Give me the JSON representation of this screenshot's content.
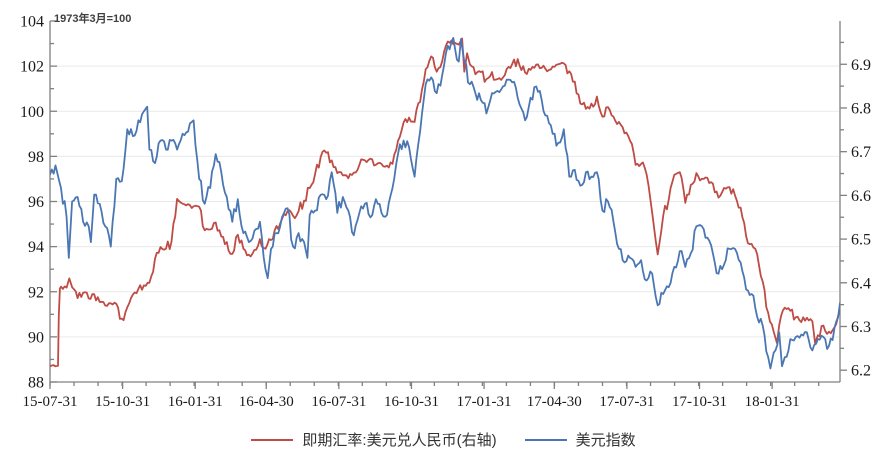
{
  "chart": {
    "annotation": "1973年3月=100",
    "legend": [
      {
        "label": "即期汇率:美元兑人民币(右轴)",
        "color": "#bf4b45"
      },
      {
        "label": "美元指数",
        "color": "#4a77b4"
      }
    ],
    "colors": {
      "axis_line": "#808080",
      "gridline": "#e9e9e9",
      "tick": "#808080",
      "label": "#1a1a1a",
      "red_series": "#bf4b45",
      "blue_series": "#4a77b4",
      "background": "#ffffff"
    }
  },
  "chart_data": {
    "type": "line",
    "title": "",
    "annotation": "1973年3月=100",
    "x_unit": "weeks since 2015-07-31",
    "grid": "horizontal-only",
    "legend_position": "bottom-center",
    "x_ticks": {
      "labels": [
        "15-07-31",
        "15-10-31",
        "16-01-31",
        "16-04-30",
        "16-07-31",
        "16-10-31",
        "17-01-31",
        "17-04-30",
        "17-07-31",
        "17-10-31",
        "18-01-31"
      ],
      "weeks": [
        0,
        13.143,
        26.286,
        39.143,
        52.286,
        65.429,
        78.571,
        91.286,
        104.429,
        117.571,
        130.714
      ],
      "minor_every_months": 1,
      "x_max_week": 143
    },
    "left_axis": {
      "series": "美元指数",
      "min": 88,
      "max": 104,
      "tick_step": 2,
      "minor_step": 1,
      "tick_labels": [
        88,
        90,
        92,
        94,
        96,
        98,
        100,
        102,
        104
      ]
    },
    "right_axis": {
      "series": "即期汇率:美元兑人民币",
      "min_at_bottom": 6.173,
      "max_at_top": 6.999,
      "tick_labels": [
        6.2,
        6.3,
        6.4,
        6.5,
        6.6,
        6.7,
        6.8,
        6.9
      ],
      "minor_step": 0.05
    },
    "series": [
      {
        "name": "即期汇率:美元兑人民币(右轴)",
        "axis": "right",
        "color": "#bf4b45",
        "points": [
          [
            0,
            6.209
          ],
          [
            1,
            6.209
          ],
          [
            1.45,
            6.21
          ],
          [
            1.6,
            6.325
          ],
          [
            1.8,
            6.387
          ],
          [
            2,
            6.391
          ],
          [
            3,
            6.389
          ],
          [
            3.5,
            6.41
          ],
          [
            4,
            6.39
          ],
          [
            5,
            6.365
          ],
          [
            6,
            6.377
          ],
          [
            7,
            6.364
          ],
          [
            8,
            6.374
          ],
          [
            9,
            6.356
          ],
          [
            10,
            6.348
          ],
          [
            11,
            6.353
          ],
          [
            12,
            6.352
          ],
          [
            13,
            6.318
          ],
          [
            14,
            6.344
          ],
          [
            15,
            6.373
          ],
          [
            16,
            6.386
          ],
          [
            17,
            6.394
          ],
          [
            18,
            6.4
          ],
          [
            19,
            6.455
          ],
          [
            20,
            6.482
          ],
          [
            21,
            6.478
          ],
          [
            22,
            6.494
          ],
          [
            23,
            6.592
          ],
          [
            24,
            6.581
          ],
          [
            25,
            6.58
          ],
          [
            26,
            6.575
          ],
          [
            27,
            6.574
          ],
          [
            28,
            6.52
          ],
          [
            29,
            6.522
          ],
          [
            30,
            6.538
          ],
          [
            31,
            6.506
          ],
          [
            32,
            6.493
          ],
          [
            33,
            6.466
          ],
          [
            34,
            6.51
          ],
          [
            35,
            6.478
          ],
          [
            36,
            6.464
          ],
          [
            37,
            6.475
          ],
          [
            38,
            6.5
          ],
          [
            39,
            6.478
          ],
          [
            40,
            6.498
          ],
          [
            41,
            6.53
          ],
          [
            42,
            6.546
          ],
          [
            43,
            6.564
          ],
          [
            44,
            6.553
          ],
          [
            45,
            6.564
          ],
          [
            46,
            6.588
          ],
          [
            47,
            6.617
          ],
          [
            48,
            6.65
          ],
          [
            49,
            6.688
          ],
          [
            50,
            6.698
          ],
          [
            51,
            6.68
          ],
          [
            52,
            6.651
          ],
          [
            53,
            6.646
          ],
          [
            54,
            6.639
          ],
          [
            55,
            6.652
          ],
          [
            56,
            6.67
          ],
          [
            57,
            6.68
          ],
          [
            58,
            6.684
          ],
          [
            59,
            6.67
          ],
          [
            60,
            6.672
          ],
          [
            61,
            6.668
          ],
          [
            62,
            6.672
          ],
          [
            63,
            6.725
          ],
          [
            64,
            6.767
          ],
          [
            65,
            6.778
          ],
          [
            66,
            6.768
          ],
          [
            67,
            6.814
          ],
          [
            68,
            6.889
          ],
          [
            69,
            6.918
          ],
          [
            70,
            6.883
          ],
          [
            71,
            6.907
          ],
          [
            72,
            6.952
          ],
          [
            73,
            6.946
          ],
          [
            74,
            6.945
          ],
          [
            74.6,
            6.959
          ],
          [
            75,
            6.883
          ],
          [
            75.5,
            6.925
          ],
          [
            76,
            6.9
          ],
          [
            77,
            6.877
          ],
          [
            78,
            6.882
          ],
          [
            79,
            6.866
          ],
          [
            80,
            6.882
          ],
          [
            81,
            6.866
          ],
          [
            82,
            6.87
          ],
          [
            83,
            6.894
          ],
          [
            84,
            6.911
          ],
          [
            85,
            6.897
          ],
          [
            86,
            6.881
          ],
          [
            87,
            6.887
          ],
          [
            88,
            6.899
          ],
          [
            89,
            6.892
          ],
          [
            90,
            6.884
          ],
          [
            91,
            6.895
          ],
          [
            92,
            6.9
          ],
          [
            93,
            6.902
          ],
          [
            94,
            6.884
          ],
          [
            95,
            6.86
          ],
          [
            96,
            6.81
          ],
          [
            97,
            6.798
          ],
          [
            98,
            6.81
          ],
          [
            99,
            6.826
          ],
          [
            100,
            6.78
          ],
          [
            101,
            6.802
          ],
          [
            102,
            6.78
          ],
          [
            103,
            6.768
          ],
          [
            104,
            6.742
          ],
          [
            105,
            6.725
          ],
          [
            106,
            6.67
          ],
          [
            107,
            6.672
          ],
          [
            108,
            6.648
          ],
          [
            109,
            6.56
          ],
          [
            110,
            6.465
          ],
          [
            111,
            6.553
          ],
          [
            112,
            6.59
          ],
          [
            113,
            6.647
          ],
          [
            114,
            6.653
          ],
          [
            115,
            6.583
          ],
          [
            116,
            6.624
          ],
          [
            117,
            6.651
          ],
          [
            118,
            6.638
          ],
          [
            119,
            6.64
          ],
          [
            120,
            6.627
          ],
          [
            121,
            6.595
          ],
          [
            122,
            6.617
          ],
          [
            123,
            6.619
          ],
          [
            124,
            6.6
          ],
          [
            125,
            6.572
          ],
          [
            126,
            6.507
          ],
          [
            127,
            6.489
          ],
          [
            128,
            6.466
          ],
          [
            129,
            6.403
          ],
          [
            130,
            6.331
          ],
          [
            131,
            6.288
          ],
          [
            131.6,
            6.262
          ],
          [
            132,
            6.303
          ],
          [
            133,
            6.343
          ],
          [
            134,
            6.336
          ],
          [
            135,
            6.321
          ],
          [
            136,
            6.31
          ],
          [
            137,
            6.32
          ],
          [
            138,
            6.312
          ],
          [
            138.5,
            6.262
          ],
          [
            139,
            6.28
          ],
          [
            140,
            6.302
          ],
          [
            141,
            6.288
          ],
          [
            142,
            6.298
          ],
          [
            143,
            6.336
          ]
        ]
      },
      {
        "name": "美元指数",
        "axis": "left",
        "color": "#4a77b4",
        "points": [
          [
            0,
            97.2
          ],
          [
            1,
            97.6
          ],
          [
            2,
            96.6
          ],
          [
            3,
            95.3
          ],
          [
            3.4,
            93.5
          ],
          [
            4,
            96.0
          ],
          [
            5,
            96.2
          ],
          [
            6,
            95.1
          ],
          [
            7,
            94.9
          ],
          [
            7.4,
            94.2
          ],
          [
            8,
            96.3
          ],
          [
            9,
            95.9
          ],
          [
            10,
            94.9
          ],
          [
            11,
            94.0
          ],
          [
            12,
            97.0
          ],
          [
            13,
            96.9
          ],
          [
            14,
            99.2
          ],
          [
            15,
            98.9
          ],
          [
            16,
            99.6
          ],
          [
            17,
            100.0
          ],
          [
            17.6,
            100.2
          ],
          [
            18,
            98.3
          ],
          [
            19,
            97.7
          ],
          [
            20,
            98.7
          ],
          [
            21,
            98.3
          ],
          [
            22,
            98.7
          ],
          [
            23,
            98.3
          ],
          [
            24,
            99.0
          ],
          [
            25,
            99.1
          ],
          [
            26,
            99.6
          ],
          [
            27,
            97.0
          ],
          [
            28,
            95.9
          ],
          [
            29,
            96.6
          ],
          [
            30,
            98.1
          ],
          [
            31,
            97.3
          ],
          [
            32,
            96.2
          ],
          [
            33,
            95.1
          ],
          [
            34,
            96.1
          ],
          [
            35,
            94.6
          ],
          [
            36,
            94.2
          ],
          [
            37,
            94.7
          ],
          [
            38,
            95.1
          ],
          [
            39,
            93.0
          ],
          [
            39.4,
            92.6
          ],
          [
            40,
            93.9
          ],
          [
            41,
            94.6
          ],
          [
            42,
            95.3
          ],
          [
            43,
            95.7
          ],
          [
            44,
            94.0
          ],
          [
            45,
            94.6
          ],
          [
            46,
            94.2
          ],
          [
            46.6,
            93.5
          ],
          [
            47,
            95.4
          ],
          [
            48,
            95.6
          ],
          [
            49,
            96.3
          ],
          [
            50,
            96.1
          ],
          [
            51,
            97.3
          ],
          [
            52,
            95.5
          ],
          [
            53,
            96.2
          ],
          [
            54,
            95.6
          ],
          [
            55,
            94.5
          ],
          [
            56,
            95.5
          ],
          [
            57,
            95.9
          ],
          [
            58,
            95.3
          ],
          [
            59,
            96.1
          ],
          [
            60,
            95.5
          ],
          [
            61,
            95.4
          ],
          [
            62,
            96.6
          ],
          [
            63,
            98.1
          ],
          [
            64,
            98.7
          ],
          [
            65,
            98.4
          ],
          [
            66,
            97.1
          ],
          [
            67,
            99.1
          ],
          [
            68,
            101.2
          ],
          [
            69,
            101.5
          ],
          [
            70,
            100.8
          ],
          [
            71,
            101.6
          ],
          [
            72,
            102.9
          ],
          [
            73,
            103.25
          ],
          [
            74,
            102.2
          ],
          [
            74.4,
            103.2
          ],
          [
            75,
            102.2
          ],
          [
            76,
            101.2
          ],
          [
            77,
            100.8
          ],
          [
            78,
            100.5
          ],
          [
            79,
            99.9
          ],
          [
            80,
            100.8
          ],
          [
            81,
            100.9
          ],
          [
            82,
            101.1
          ],
          [
            83,
            101.4
          ],
          [
            84,
            101.3
          ],
          [
            85,
            100.3
          ],
          [
            86,
            99.6
          ],
          [
            87,
            100.6
          ],
          [
            88,
            101.1
          ],
          [
            89,
            100.5
          ],
          [
            90,
            99.8
          ],
          [
            91,
            99.0
          ],
          [
            92,
            98.6
          ],
          [
            93,
            99.2
          ],
          [
            94,
            97.1
          ],
          [
            95,
            97.4
          ],
          [
            96,
            96.7
          ],
          [
            97,
            97.3
          ],
          [
            98,
            97.1
          ],
          [
            99,
            97.3
          ],
          [
            100,
            95.6
          ],
          [
            101,
            96.0
          ],
          [
            102,
            95.1
          ],
          [
            103,
            93.9
          ],
          [
            104,
            93.3
          ],
          [
            105,
            93.5
          ],
          [
            106,
            93.1
          ],
          [
            107,
            93.4
          ],
          [
            108,
            92.5
          ],
          [
            109,
            92.8
          ],
          [
            110,
            91.4
          ],
          [
            111,
            91.9
          ],
          [
            112,
            92.2
          ],
          [
            113,
            93.1
          ],
          [
            114,
            93.8
          ],
          [
            115,
            93.1
          ],
          [
            116,
            93.7
          ],
          [
            117,
            94.9
          ],
          [
            118,
            94.9
          ],
          [
            119,
            94.4
          ],
          [
            120,
            93.7
          ],
          [
            121,
            92.8
          ],
          [
            122,
            93.2
          ],
          [
            123,
            93.9
          ],
          [
            124,
            93.9
          ],
          [
            125,
            93.3
          ],
          [
            126,
            92.1
          ],
          [
            127,
            91.9
          ],
          [
            128,
            90.9
          ],
          [
            129,
            90.5
          ],
          [
            130,
            89.1
          ],
          [
            130.4,
            88.6
          ],
          [
            131,
            89.3
          ],
          [
            132,
            90.2
          ],
          [
            132.5,
            88.7
          ],
          [
            133,
            89.1
          ],
          [
            134,
            89.9
          ],
          [
            135,
            90.0
          ],
          [
            136,
            90.1
          ],
          [
            137,
            90.2
          ],
          [
            138,
            89.4
          ],
          [
            139,
            89.9
          ],
          [
            140,
            90.0
          ],
          [
            141,
            89.6
          ],
          [
            142,
            90.4
          ],
          [
            143,
            91.5
          ]
        ]
      }
    ]
  }
}
